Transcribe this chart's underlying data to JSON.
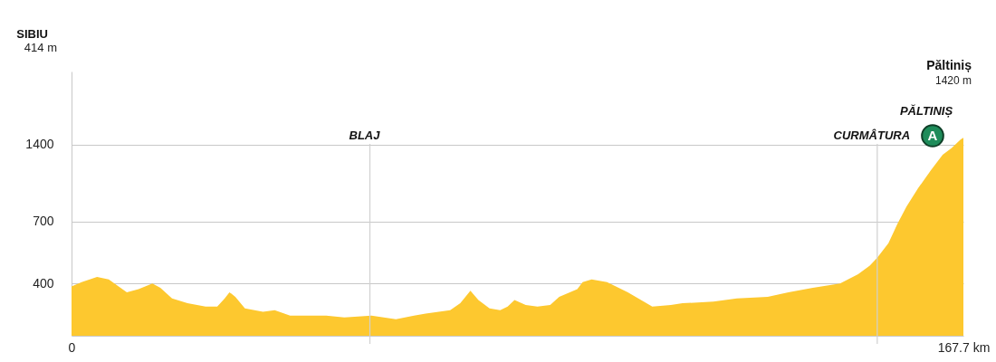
{
  "chart_data": {
    "type": "area",
    "color": "#fdc82f",
    "x": [
      0,
      1.9,
      4.8,
      7.0,
      10.4,
      12.6,
      15.2,
      16.7,
      18.9,
      21.8,
      25.2,
      27.4,
      28.8,
      29.7,
      30.8,
      32.6,
      36.0,
      38.2,
      41.1,
      47.9,
      51.3,
      56.4,
      61.0,
      64.4,
      66.6,
      71.2,
      73.1,
      75.0,
      76.5,
      78.6,
      80.6,
      82.0,
      83.3,
      85.4,
      87.6,
      90.0,
      91.7,
      95.1,
      96.1,
      97.8,
      100.7,
      104.6,
      109.2,
      112.7,
      114.9,
      120.7,
      125.1,
      130.9,
      134.8,
      139.4,
      144.5,
      147.9,
      150.1,
      151.5,
      153.6,
      155.3,
      157.0,
      159.2,
      161.6,
      163.8,
      165.5,
      167.2,
      167.7
    ],
    "values": [
      390,
      405,
      425,
      415,
      370,
      380,
      400,
      385,
      350,
      335,
      325,
      325,
      350,
      370,
      355,
      320,
      310,
      315,
      300,
      300,
      295,
      300,
      290,
      300,
      305,
      315,
      335,
      375,
      345,
      320,
      315,
      325,
      345,
      330,
      325,
      330,
      355,
      380,
      405,
      415,
      405,
      370,
      325,
      330,
      335,
      340,
      350,
      355,
      370,
      385,
      400,
      435,
      470,
      505,
      575,
      685,
      800,
      945,
      1110,
      1275,
      1355,
      1465,
      1485
    ],
    "xlim": [
      0,
      167.7
    ],
    "xticks": [
      0,
      {
        "value": 167.7,
        "label": "167.7 km"
      }
    ],
    "ylim": [
      250,
      2700
    ],
    "yticks": [
      400,
      700,
      1400
    ],
    "log": true,
    "grid": "y",
    "ref_lines": [
      {
        "axis": "x",
        "value": 56.1,
        "label": "BLAJ",
        "color": "#d0d0d0"
      },
      {
        "axis": "x",
        "value": 151.5,
        "label": "CURMÂTURA",
        "color": "#d0d0d0"
      }
    ],
    "annotations": [
      "SIBIU",
      "414 m",
      "Păltiniș",
      "1420 m",
      "PĂLTINIȘ",
      "A"
    ]
  }
}
